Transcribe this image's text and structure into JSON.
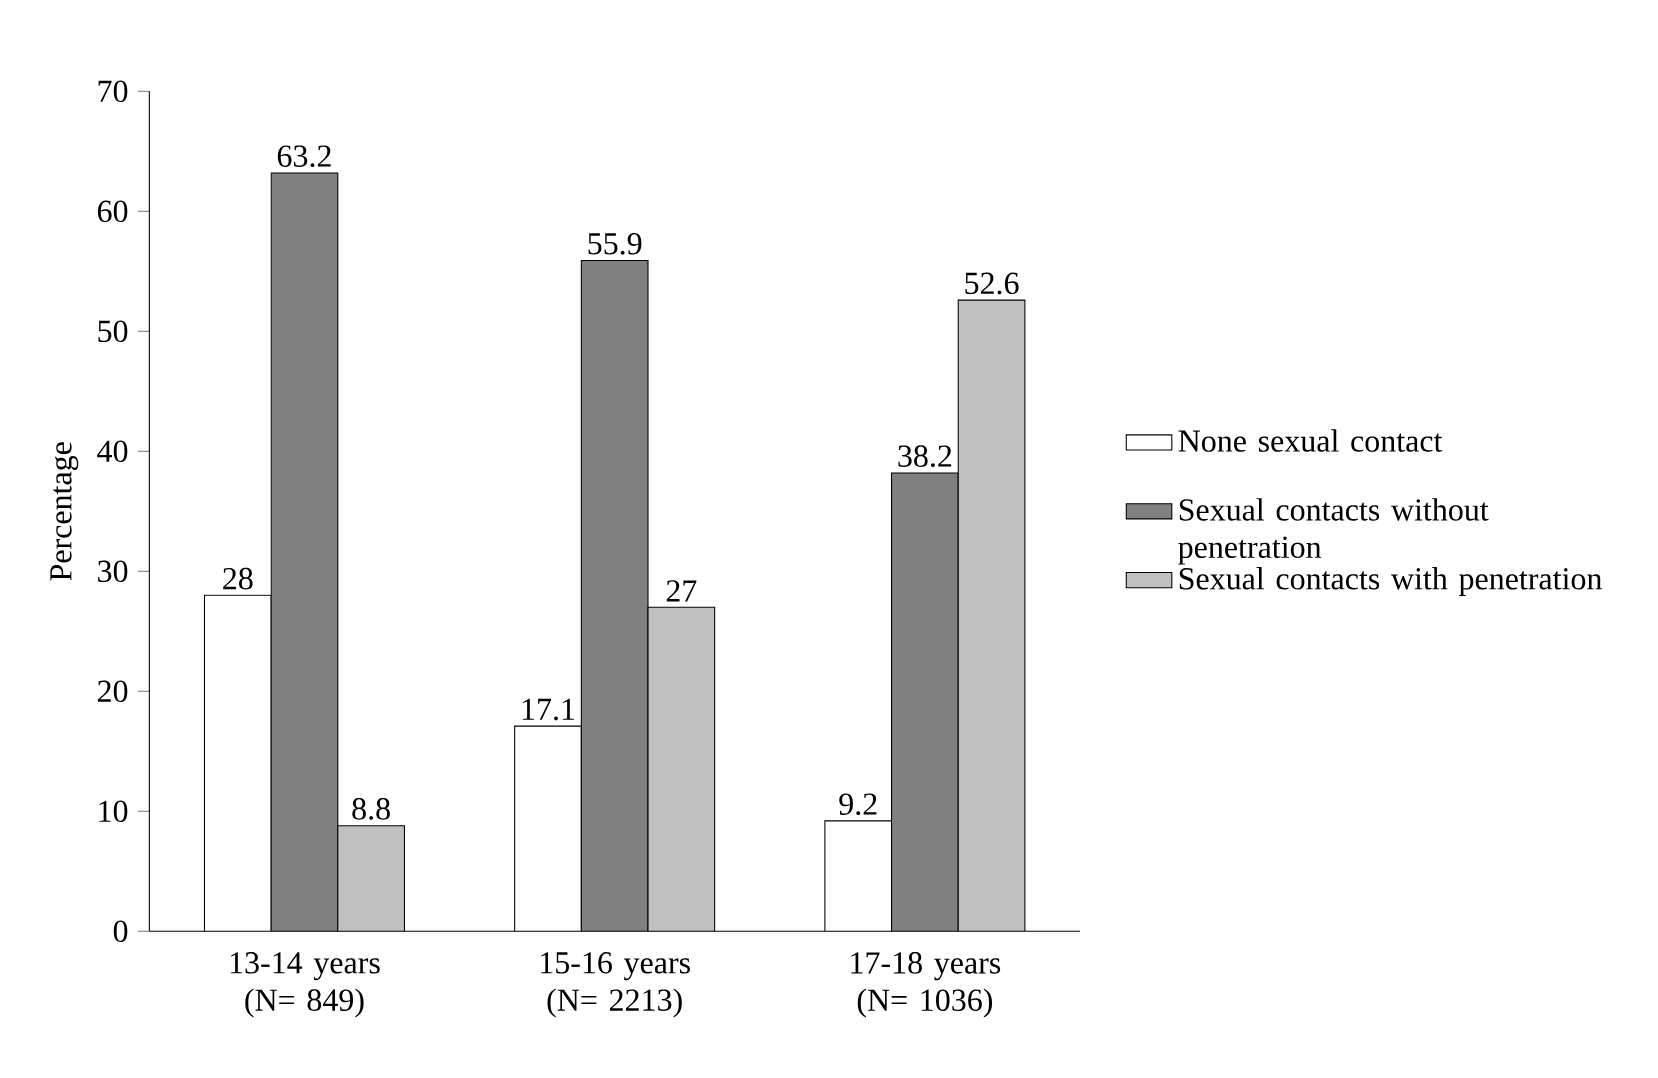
{
  "chart_data": {
    "type": "bar",
    "ylabel": "Percentage",
    "categories": [
      "13-14 years (N= 849)",
      "15-16 years (N= 2213)",
      "17-18 years (N= 1036)"
    ],
    "series": [
      {
        "name": "None sexual contact",
        "color": "#ffffff",
        "values": [
          28,
          17.1,
          9.2
        ]
      },
      {
        "name": "Sexual contacts without penetration",
        "color": "#808080",
        "values": [
          63.2,
          55.9,
          38.2
        ]
      },
      {
        "name": "Sexual contacts with penetration",
        "color": "#c0c0c0",
        "values": [
          8.8,
          27,
          52.6
        ]
      }
    ],
    "ylim": [
      0,
      70
    ],
    "yticks": [
      0,
      10,
      20,
      30,
      40,
      50,
      60,
      70
    ],
    "grid": false,
    "legend": "right",
    "data_labels": true
  }
}
